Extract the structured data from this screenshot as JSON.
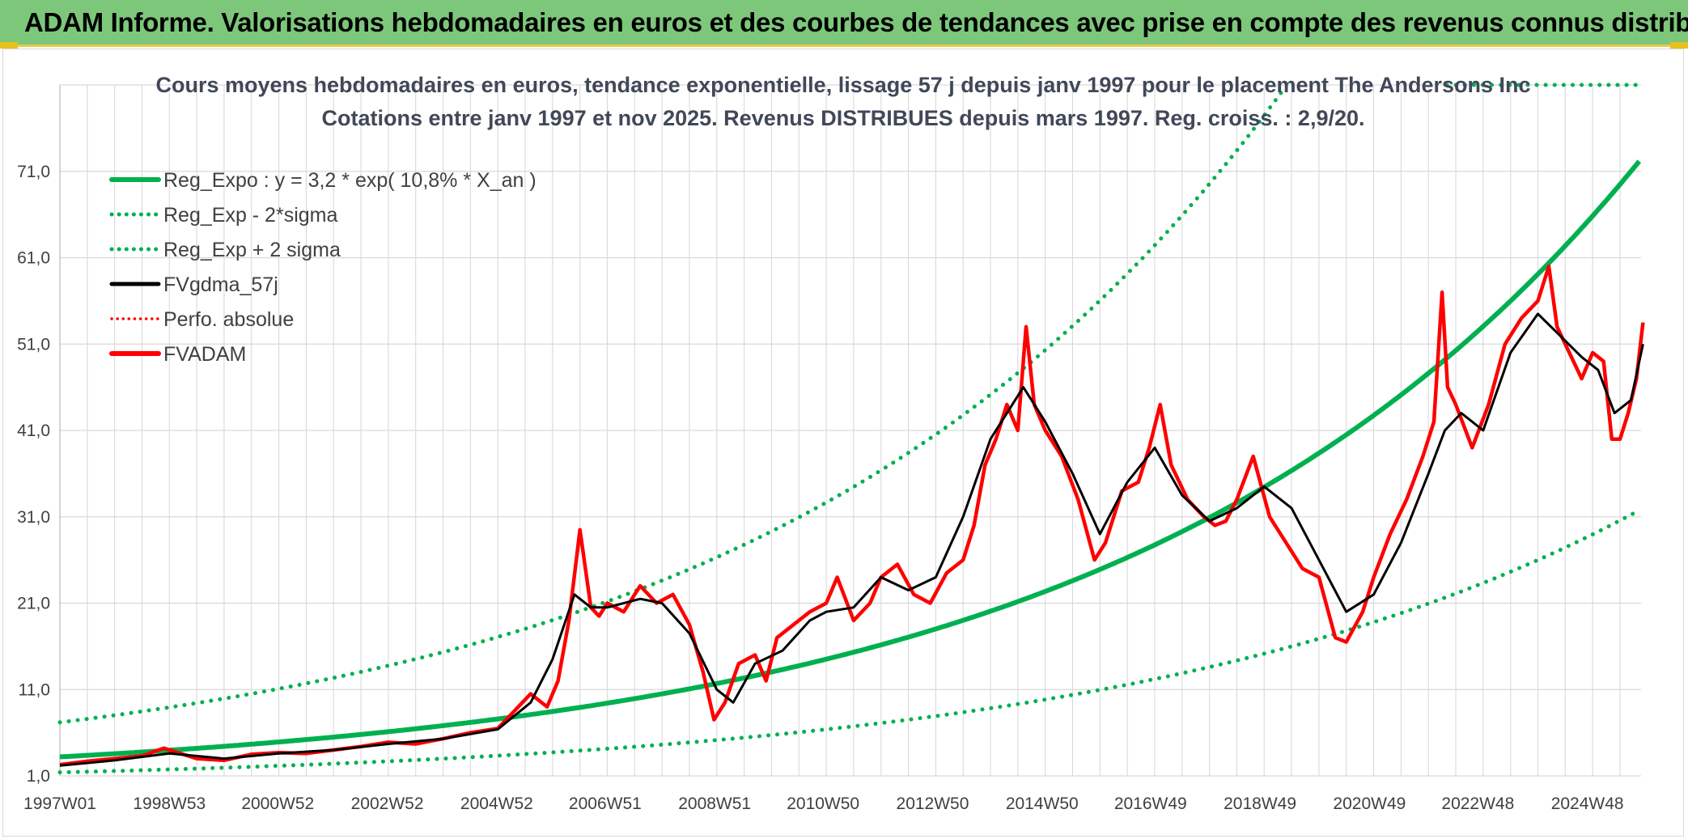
{
  "header": {
    "title": "ADAM Informe. Valorisations hebdomadaires en euros et des courbes de tendances avec prise en compte des revenus connus distribués"
  },
  "colors": {
    "header_bg": "#7dc77b",
    "trend": "#00b050",
    "smooth": "#000000",
    "price": "#ff0000",
    "grid": "#d9d9d9"
  },
  "chart_data": {
    "type": "line",
    "title": "Cours moyens hebdomadaires en euros, tendance exponentielle, lissage 57 j depuis janv 1997 pour le placement The Andersons Inc",
    "subtitle": "Cotations entre janv 1997 et nov 2025. Revenus DISTRIBUES depuis mars 1997. Reg. croiss. : 2,9/20.",
    "xlabel": "",
    "ylabel": "",
    "x_range": [
      "1997W01",
      "2025W47"
    ],
    "ylim": [
      1,
      81
    ],
    "y_ticks": [
      "1,0",
      "11,0",
      "21,0",
      "31,0",
      "41,0",
      "51,0",
      "61,0",
      "71,0"
    ],
    "x_ticks": [
      "1997W01",
      "1998W53",
      "2000W52",
      "2002W52",
      "2004W52",
      "2006W51",
      "2008W51",
      "2010W50",
      "2012W50",
      "2014W50",
      "2016W49",
      "2018W49",
      "2020W49",
      "2022W48",
      "2024W48"
    ],
    "grid": true,
    "legend_position": "top-left",
    "legend": [
      "Reg_Expo : y = 3,2 * exp( 10,8% *  X_an )",
      "Reg_Exp - 2*sigma",
      "Reg_Exp + 2 sigma",
      "FVgdma_57j",
      "Perfo. absolue",
      "FVADAM"
    ],
    "regression": {
      "a": 3.2,
      "b": 0.108,
      "lower_factor": 0.44,
      "upper_factor": 2.25
    },
    "series": [
      {
        "name": "FVADAM",
        "x": [
          1997.0,
          1997.5,
          1998.0,
          1998.5,
          1998.9,
          1999.2,
          1999.5,
          2000.0,
          2000.5,
          2001.0,
          2001.5,
          2002.0,
          2002.5,
          2003.0,
          2003.5,
          2004.0,
          2004.5,
          2005.0,
          2005.3,
          2005.6,
          2005.9,
          2006.1,
          2006.3,
          2006.5,
          2006.7,
          2006.85,
          2007.0,
          2007.3,
          2007.6,
          2007.9,
          2008.2,
          2008.5,
          2008.75,
          2008.95,
          2009.15,
          2009.4,
          2009.7,
          2009.9,
          2010.1,
          2010.4,
          2010.7,
          2011.0,
          2011.2,
          2011.5,
          2011.8,
          2012.0,
          2012.3,
          2012.6,
          2012.9,
          2013.2,
          2013.5,
          2013.7,
          2013.9,
          2014.1,
          2014.3,
          2014.5,
          2014.65,
          2014.8,
          2015.0,
          2015.3,
          2015.6,
          2015.9,
          2016.1,
          2016.4,
          2016.7,
          2016.9,
          2017.1,
          2017.3,
          2017.6,
          2017.9,
          2018.1,
          2018.3,
          2018.5,
          2018.8,
          2019.1,
          2019.4,
          2019.7,
          2020.0,
          2020.3,
          2020.5,
          2020.8,
          2021.0,
          2021.3,
          2021.6,
          2021.9,
          2022.1,
          2022.25,
          2022.35,
          2022.5,
          2022.8,
          2023.1,
          2023.4,
          2023.7,
          2024.0,
          2024.2,
          2024.35,
          2024.5,
          2024.8,
          2025.0,
          2025.2,
          2025.35,
          2025.5,
          2025.65,
          2025.8,
          2025.92
        ],
        "values": [
          2.3,
          2.7,
          3.0,
          3.3,
          4.2,
          3.6,
          3.0,
          2.8,
          3.5,
          3.7,
          3.6,
          4.0,
          4.4,
          4.9,
          4.7,
          5.3,
          6.0,
          6.5,
          8.5,
          10.5,
          9.0,
          12.0,
          19.0,
          29.5,
          20.5,
          19.5,
          21.0,
          20.0,
          23.0,
          21.0,
          22.0,
          18.5,
          13.0,
          7.5,
          9.5,
          14.0,
          15.0,
          12.0,
          17.0,
          18.5,
          20.0,
          21.0,
          24.0,
          19.0,
          21.0,
          24.0,
          25.5,
          22.0,
          21.0,
          24.5,
          26.0,
          30.0,
          37.0,
          40.0,
          44.0,
          41.0,
          53.0,
          44.0,
          41.0,
          38.0,
          33.0,
          26.0,
          28.0,
          34.0,
          35.0,
          39.0,
          44.0,
          37.0,
          33.0,
          31.0,
          30.0,
          30.5,
          33.0,
          38.0,
          31.0,
          28.0,
          25.0,
          24.0,
          17.0,
          16.5,
          20.0,
          24.0,
          29.0,
          33.0,
          38.0,
          42.0,
          57.0,
          46.0,
          44.0,
          39.0,
          44.0,
          51.0,
          54.0,
          56.0,
          60.0,
          53.0,
          51.0,
          47.0,
          50.0,
          49.0,
          40.0,
          40.0,
          43.0,
          47.0,
          53.5
        ]
      },
      {
        "name": "FVgdma_57j",
        "x": [
          1997.0,
          1998.0,
          1999.0,
          2000.0,
          2001.0,
          2002.0,
          2003.0,
          2004.0,
          2005.0,
          2005.6,
          2006.0,
          2006.4,
          2006.7,
          2007.0,
          2007.6,
          2008.0,
          2008.5,
          2009.0,
          2009.3,
          2009.7,
          2010.2,
          2010.7,
          2011.0,
          2011.5,
          2012.0,
          2012.5,
          2013.0,
          2013.5,
          2014.0,
          2014.6,
          2015.0,
          2015.5,
          2016.0,
          2016.5,
          2017.0,
          2017.5,
          2018.0,
          2018.5,
          2019.0,
          2019.5,
          2020.0,
          2020.5,
          2021.0,
          2021.5,
          2022.0,
          2022.3,
          2022.6,
          2023.0,
          2023.5,
          2024.0,
          2024.4,
          2024.8,
          2025.1,
          2025.4,
          2025.7,
          2025.92
        ],
        "values": [
          2.2,
          2.8,
          3.6,
          3.0,
          3.6,
          4.0,
          4.7,
          5.3,
          6.4,
          9.5,
          14.5,
          22.0,
          20.5,
          20.5,
          21.5,
          21.0,
          17.5,
          11.0,
          9.5,
          14.0,
          15.5,
          19.0,
          20.0,
          20.5,
          24.0,
          22.5,
          24.0,
          31.0,
          40.0,
          46.0,
          42.0,
          36.0,
          29.0,
          35.0,
          39.0,
          33.5,
          30.5,
          32.0,
          34.5,
          32.0,
          26.0,
          20.0,
          22.0,
          28.0,
          36.0,
          41.0,
          43.0,
          41.0,
          50.0,
          54.5,
          52.0,
          49.5,
          48.0,
          43.0,
          44.5,
          51.0
        ]
      }
    ]
  }
}
